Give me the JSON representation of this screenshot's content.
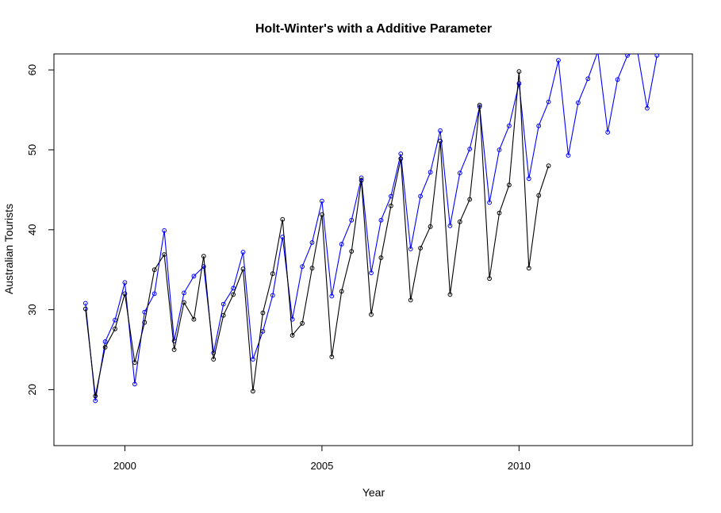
{
  "chart_data": {
    "type": "line",
    "title": "Holt-Winter's with a Additive Parameter",
    "xlabel": "Year",
    "ylabel": "Australian Tourists",
    "xlim": [
      1998.2,
      2014.4
    ],
    "ylim": [
      13,
      62
    ],
    "x_ticks": [
      2000,
      2005,
      2010
    ],
    "y_ticks": [
      20,
      30,
      40,
      50,
      60
    ],
    "grid": false,
    "legend": "none",
    "series": [
      {
        "color": "#0000ff",
        "marker": "circle",
        "x": [
          1999.0,
          1999.25,
          1999.5,
          1999.75,
          2000.0,
          2000.25,
          2000.5,
          2000.75,
          2001.0,
          2001.25,
          2001.5,
          2001.75,
          2002.0,
          2002.25,
          2002.5,
          2002.75,
          2003.0,
          2003.25,
          2003.5,
          2003.75,
          2004.0,
          2004.25,
          2004.5,
          2004.75,
          2005.0,
          2005.25,
          2005.5,
          2005.75,
          2006.0,
          2006.25,
          2006.5,
          2006.75,
          2007.0,
          2007.25,
          2007.5,
          2007.75,
          2008.0,
          2008.25,
          2008.5,
          2008.75,
          2009.0,
          2009.25,
          2009.5,
          2009.75,
          2010.0,
          2010.25,
          2010.5,
          2010.75,
          2011.0,
          2011.25,
          2011.5,
          2011.75,
          2012.0,
          2012.25,
          2012.5,
          2012.75,
          2013.0,
          2013.25,
          2013.5
        ],
        "y": [
          30.8,
          18.6,
          26.0,
          28.7,
          33.4,
          20.7,
          29.7,
          32.0,
          39.9,
          26.1,
          32.1,
          34.2,
          35.4,
          24.6,
          30.7,
          32.7,
          37.2,
          23.8,
          27.3,
          31.8,
          39.1,
          28.8,
          35.4,
          38.4,
          43.6,
          31.7,
          38.2,
          41.2,
          46.5,
          34.6,
          41.2,
          44.2,
          49.5,
          37.6,
          44.2,
          47.2,
          52.4,
          40.5,
          47.1,
          50.1,
          55.4,
          43.4,
          50.0,
          53.0,
          58.3,
          46.4,
          53.0,
          56.0,
          61.2,
          49.3,
          55.9,
          58.9,
          62.3,
          52.2,
          58.8,
          61.8,
          62.5,
          55.2,
          61.8
        ]
      },
      {
        "color": "#000000",
        "marker": "circle",
        "x": [
          1999.0,
          1999.25,
          1999.5,
          1999.75,
          2000.0,
          2000.25,
          2000.5,
          2000.75,
          2001.0,
          2001.25,
          2001.5,
          2001.75,
          2002.0,
          2002.25,
          2002.5,
          2002.75,
          2003.0,
          2003.25,
          2003.5,
          2003.75,
          2004.0,
          2004.25,
          2004.5,
          2004.75,
          2005.0,
          2005.25,
          2005.5,
          2005.75,
          2006.0,
          2006.25,
          2006.5,
          2006.75,
          2007.0,
          2007.25,
          2007.5,
          2007.75,
          2008.0,
          2008.25,
          2008.5,
          2008.75,
          2009.0,
          2009.25,
          2009.5,
          2009.75,
          2010.0,
          2010.25,
          2010.5,
          2010.75
        ],
        "y": [
          30.1,
          19.2,
          25.3,
          27.6,
          32.0,
          23.4,
          28.4,
          35.0,
          36.9,
          25.0,
          30.9,
          28.8,
          36.7,
          23.8,
          29.3,
          31.9,
          35.1,
          19.8,
          29.6,
          34.5,
          41.3,
          26.8,
          28.3,
          35.2,
          41.9,
          24.1,
          32.3,
          37.3,
          46.2,
          29.4,
          36.5,
          43.0,
          48.9,
          31.2,
          37.7,
          40.4,
          51.1,
          31.9,
          41.0,
          43.8,
          55.6,
          33.9,
          42.1,
          45.6,
          59.8,
          35.2,
          44.3,
          48.0
        ]
      }
    ]
  }
}
